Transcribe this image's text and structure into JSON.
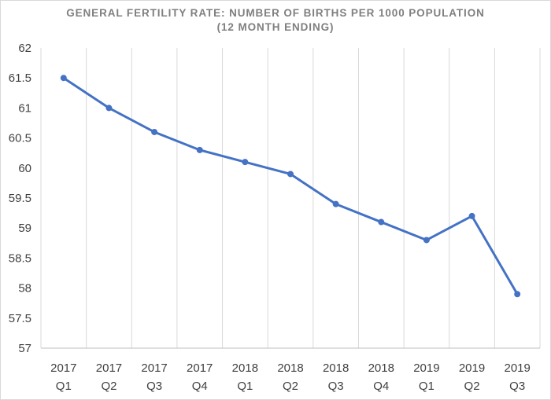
{
  "chart_data": {
    "type": "line",
    "title": "GENERAL FERTILITY RATE: NUMBER OF BIRTHS PER 1000 POPULATION",
    "subtitle": "(12 MONTH ENDING)",
    "xlabel": "",
    "ylabel": "",
    "categories": [
      [
        "2017",
        "Q1"
      ],
      [
        "2017",
        "Q2"
      ],
      [
        "2017",
        "Q3"
      ],
      [
        "2017",
        "Q4"
      ],
      [
        "2018",
        "Q1"
      ],
      [
        "2018",
        "Q2"
      ],
      [
        "2018",
        "Q3"
      ],
      [
        "2018",
        "Q4"
      ],
      [
        "2019",
        "Q1"
      ],
      [
        "2019",
        "Q2"
      ],
      [
        "2019",
        "Q3"
      ]
    ],
    "series": [
      {
        "values": [
          61.5,
          61.0,
          60.6,
          60.3,
          60.1,
          59.9,
          59.4,
          59.1,
          58.8,
          59.2,
          57.9
        ],
        "color": "#4472c4"
      }
    ],
    "ylim": [
      57,
      62
    ],
    "yticks": [
      "57",
      "57.5",
      "58",
      "58.5",
      "59",
      "59.5",
      "60",
      "60.5",
      "61",
      "61.5",
      "62"
    ],
    "grid": "vertical category gridlines",
    "legend": "none",
    "marker": "circle"
  }
}
